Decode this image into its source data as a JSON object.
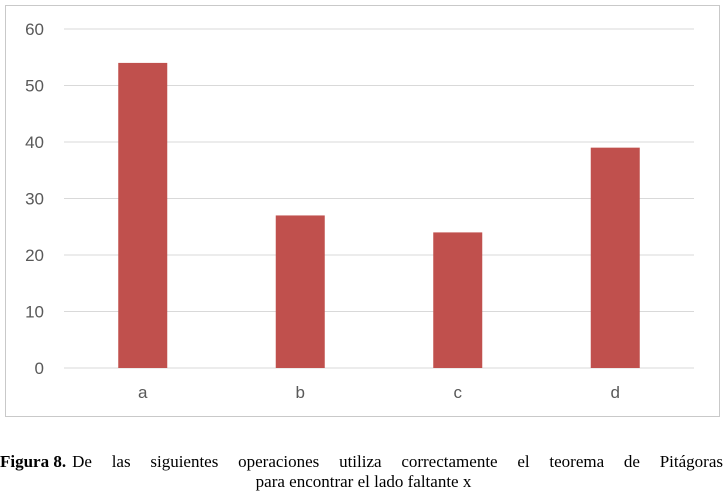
{
  "chart_data": {
    "type": "bar",
    "categories": [
      "a",
      "b",
      "c",
      "d"
    ],
    "values": [
      54,
      27,
      24,
      39
    ],
    "ylim": [
      0,
      60
    ],
    "yticks": [
      0,
      10,
      20,
      30,
      40,
      50,
      60
    ],
    "grid": true,
    "legend": "none",
    "bar_color": "#c0504d",
    "grid_color": "#d9d9d9",
    "title": "",
    "xlabel": "",
    "ylabel": ""
  },
  "caption": {
    "label": "Figura 8.",
    "text_line1": "De las siguientes operaciones utiliza correctamente el teorema de Pitágoras",
    "text_line2": "para encontrar el lado faltante x"
  }
}
